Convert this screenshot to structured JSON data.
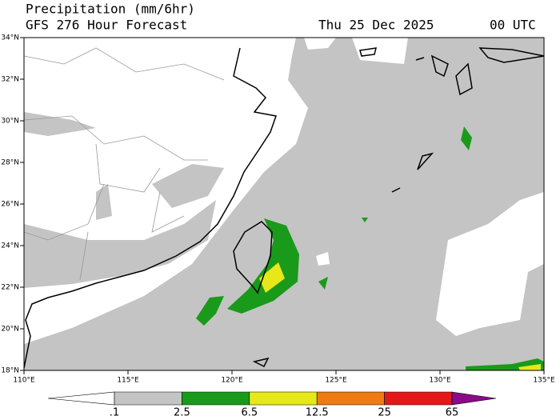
{
  "header": {
    "title": "Precipitation (mm/6hr)",
    "subtitle": "GFS 276 Hour Forecast",
    "date": "Thu 25 Dec 2025",
    "time": "00 UTC"
  },
  "map": {
    "lat_labels": [
      "34°N",
      "32°N",
      "30°N",
      "28°N",
      "26°N",
      "24°N",
      "22°N",
      "20°N",
      "18°N"
    ],
    "lon_labels": [
      "110°E",
      "115°E",
      "120°E",
      "125°E",
      "130°E",
      "135°E"
    ]
  },
  "legend": {
    "labels": [
      ".1",
      "2.5",
      "6.5",
      "12.5",
      "25",
      "65"
    ],
    "colors": [
      "#ffffff",
      "#c4c4c4",
      "#1a9a1a",
      "#e6e81a",
      "#f07a14",
      "#e41818",
      "#8a0a8a"
    ]
  }
}
